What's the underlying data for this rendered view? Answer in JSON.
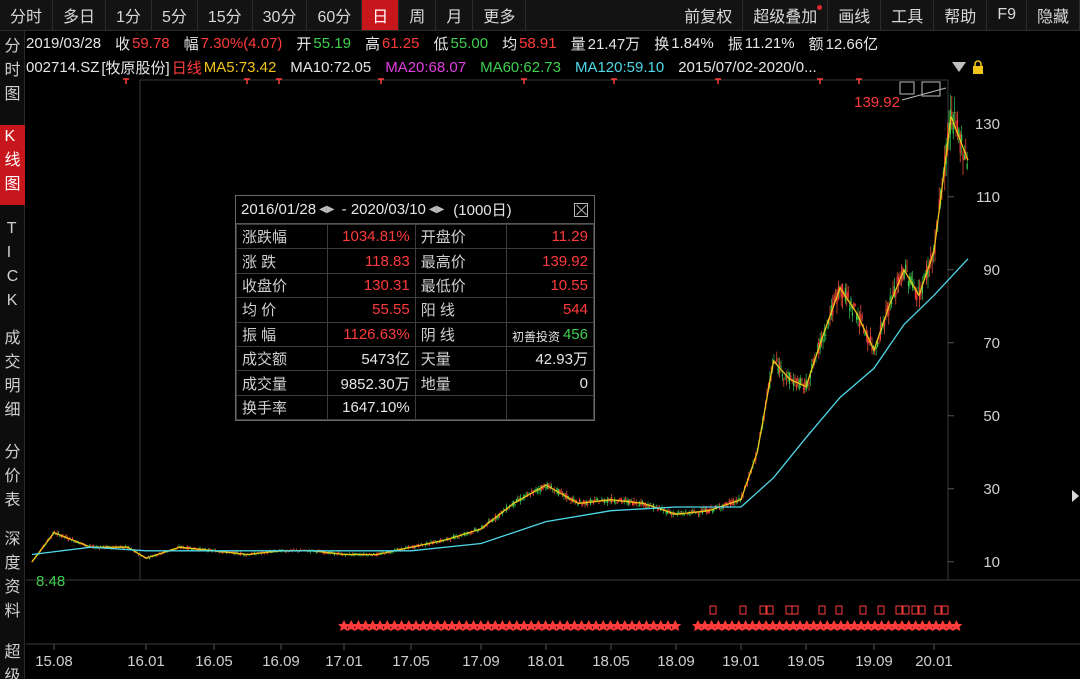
{
  "toolbar": {
    "periods": [
      "分时",
      "多日",
      "1分",
      "5分",
      "15分",
      "30分",
      "60分",
      "日",
      "周",
      "月",
      "更多"
    ],
    "active_period": "日",
    "right_items": [
      "前复权",
      "超级叠加",
      "画线",
      "工具",
      "帮助",
      "F9",
      "隐藏"
    ]
  },
  "left_tabs": {
    "intraday": "分时图",
    "kline": "K线图",
    "tick": "TICK",
    "deals": "成交明细",
    "price_table": "分价表",
    "depth": "深度资料",
    "super": "超级"
  },
  "quote": {
    "date": "2019/03/28",
    "close_label": "收",
    "close": "59.78",
    "change_label": "幅",
    "change": "7.30%(4.07)",
    "open_label": "开",
    "open": "55.19",
    "high_label": "高",
    "high": "61.25",
    "low_label": "低",
    "low": "55.00",
    "avg_label": "均",
    "avg": "58.91",
    "volume_label": "量",
    "volume": "21.47万",
    "turnover_label": "换",
    "turnover": "1.84%",
    "amplitude_label": "振",
    "amplitude": "11.21%",
    "amount_label": "额",
    "amount": "12.66亿"
  },
  "indicators": {
    "code": "002714.SZ",
    "name": "[牧原股份]",
    "kline_label": "日线",
    "ma5": "MA5:73.42",
    "ma10": "MA10:72.05",
    "ma20": "MA20:68.07",
    "ma60": "MA60:62.73",
    "ma120": "MA120:59.10",
    "range": "2015/07/02-2020/0...",
    "colors": {
      "ma5": "#f0c419",
      "ma10": "#e6e6e6",
      "ma20": "#e040e0",
      "ma60": "#3fcf4f",
      "ma120": "#4fd8e8"
    }
  },
  "stats": {
    "start": "2016/01/28",
    "end": "2020/03/10",
    "days": "(1000日)",
    "rows": [
      [
        "涨跌幅",
        "1034.81%",
        "开盘价",
        "11.29"
      ],
      [
        "涨 跌",
        "118.83",
        "最高价",
        "139.92"
      ],
      [
        "收盘价",
        "130.31",
        "最低价",
        "10.55"
      ],
      [
        "均 价",
        "55.55",
        "阳 线",
        "544"
      ],
      [
        "振 幅",
        "1126.63%",
        "阴 线",
        "456"
      ],
      [
        "成交额",
        "5473亿",
        "天量",
        "42.93万"
      ],
      [
        "成交量",
        "9852.30万",
        "地量",
        "0"
      ],
      [
        "换手率",
        "1647.10%",
        "",
        ""
      ]
    ],
    "watermark": "初善投资"
  },
  "chart_data": {
    "type": "line",
    "title": "",
    "xlabel": "",
    "ylabel": "",
    "ylim": [
      5,
      142
    ],
    "y_ticks": [
      10,
      30,
      50,
      70,
      90,
      110,
      130
    ],
    "x_ticks": [
      "15.08",
      "16.01",
      "16.05",
      "16.09",
      "17.01",
      "17.05",
      "17.09",
      "18.01",
      "18.05",
      "18.09",
      "19.01",
      "19.05",
      "19.09",
      "20.01"
    ],
    "annotations": {
      "max": "139.92",
      "min": "8.48"
    },
    "series": [
      {
        "name": "MA5",
        "x": [
          "15.07",
          "15.08",
          "15.10",
          "15.12",
          "16.01",
          "16.03",
          "16.05",
          "16.07",
          "16.09",
          "16.11",
          "17.01",
          "17.03",
          "17.05",
          "17.07",
          "17.09",
          "17.11",
          "18.01",
          "18.03",
          "18.05",
          "18.07",
          "18.09",
          "18.11",
          "19.01",
          "19.02",
          "19.03",
          "19.04",
          "19.05",
          "19.06",
          "19.07",
          "19.08",
          "19.09",
          "19.10",
          "19.11",
          "19.12",
          "20.01",
          "20.02",
          "20.03"
        ],
        "values": [
          10,
          18,
          14,
          14,
          11,
          14,
          13,
          12,
          13,
          13,
          12,
          12,
          14,
          16,
          19,
          26,
          31,
          26,
          27,
          26,
          23,
          24,
          27,
          40,
          65,
          60,
          58,
          72,
          85,
          78,
          68,
          80,
          90,
          83,
          95,
          132,
          120
        ]
      },
      {
        "name": "MA120",
        "x": [
          "15.07",
          "15.10",
          "16.01",
          "16.05",
          "16.09",
          "17.01",
          "17.05",
          "17.09",
          "18.01",
          "18.05",
          "18.09",
          "19.01",
          "19.03",
          "19.05",
          "19.07",
          "19.09",
          "19.11",
          "20.01",
          "20.03"
        ],
        "values": [
          12,
          14,
          13,
          13,
          13,
          13,
          13,
          15,
          21,
          24,
          25,
          25,
          33,
          44,
          55,
          63,
          75,
          83,
          93
        ]
      }
    ]
  }
}
